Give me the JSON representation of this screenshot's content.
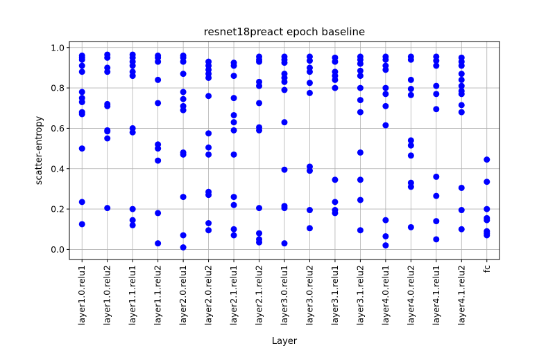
{
  "chart_data": {
    "type": "scatter",
    "title": "resnet18preact epoch baseline",
    "xlabel": "Layer",
    "ylabel": "scatter-entropy",
    "categories": [
      "layer1.0.relu1",
      "layer1.0.relu2",
      "layer1.1.relu1",
      "layer1.1.relu2",
      "layer2.0.relu1",
      "layer2.0.relu2",
      "layer2.1.relu1",
      "layer2.1.relu2",
      "layer3.0.relu1",
      "layer3.0.relu2",
      "layer3.1.relu1",
      "layer3.1.relu2",
      "layer4.0.relu1",
      "layer4.0.relu2",
      "layer4.1.relu1",
      "layer4.1.relu2",
      "fc"
    ],
    "yticks": [
      "0.0",
      "0.2",
      "0.4",
      "0.6",
      "0.8",
      "1.0"
    ],
    "ylim": [
      -0.05,
      1.03
    ],
    "grid": true,
    "marker_color": "#0000ff",
    "series": [
      {
        "category": "layer1.0.relu1",
        "y": [
          0.96,
          0.95,
          0.94,
          0.91,
          0.88,
          0.78,
          0.75,
          0.73,
          0.68,
          0.67,
          0.5,
          0.235,
          0.125
        ]
      },
      {
        "category": "layer1.0.relu2",
        "y": [
          0.965,
          0.95,
          0.9,
          0.88,
          0.72,
          0.71,
          0.59,
          0.585,
          0.55,
          0.205
        ]
      },
      {
        "category": "layer1.1.relu1",
        "y": [
          0.965,
          0.95,
          0.93,
          0.91,
          0.88,
          0.86,
          0.6,
          0.58,
          0.2,
          0.145,
          0.12
        ]
      },
      {
        "category": "layer1.1.relu2",
        "y": [
          0.96,
          0.95,
          0.93,
          0.84,
          0.725,
          0.52,
          0.5,
          0.44,
          0.18,
          0.03
        ]
      },
      {
        "category": "layer2.0.relu1",
        "y": [
          0.96,
          0.95,
          0.93,
          0.87,
          0.78,
          0.745,
          0.71,
          0.69,
          0.48,
          0.47,
          0.26,
          0.07,
          0.01
        ]
      },
      {
        "category": "layer2.0.relu2",
        "y": [
          0.93,
          0.91,
          0.89,
          0.87,
          0.85,
          0.76,
          0.575,
          0.505,
          0.47,
          0.285,
          0.27,
          0.13,
          0.095
        ]
      },
      {
        "category": "layer2.1.relu1",
        "y": [
          0.925,
          0.91,
          0.86,
          0.75,
          0.665,
          0.63,
          0.59,
          0.47,
          0.26,
          0.22,
          0.1,
          0.07
        ]
      },
      {
        "category": "layer2.1.relu2",
        "y": [
          0.955,
          0.94,
          0.93,
          0.83,
          0.81,
          0.725,
          0.605,
          0.59,
          0.205,
          0.08,
          0.05,
          0.035
        ]
      },
      {
        "category": "layer3.0.relu1",
        "y": [
          0.955,
          0.94,
          0.925,
          0.87,
          0.85,
          0.83,
          0.79,
          0.63,
          0.395,
          0.215,
          0.205,
          0.03
        ]
      },
      {
        "category": "layer3.0.relu2",
        "y": [
          0.955,
          0.935,
          0.9,
          0.88,
          0.825,
          0.775,
          0.41,
          0.39,
          0.195,
          0.105
        ]
      },
      {
        "category": "layer3.1.relu1",
        "y": [
          0.95,
          0.93,
          0.88,
          0.86,
          0.84,
          0.8,
          0.345,
          0.235,
          0.195,
          0.18
        ]
      },
      {
        "category": "layer3.1.relu2",
        "y": [
          0.955,
          0.94,
          0.92,
          0.885,
          0.86,
          0.8,
          0.74,
          0.68,
          0.48,
          0.345,
          0.245,
          0.095
        ]
      },
      {
        "category": "layer4.0.relu1",
        "y": [
          0.955,
          0.94,
          0.91,
          0.89,
          0.8,
          0.77,
          0.71,
          0.615,
          0.145,
          0.065,
          0.02
        ]
      },
      {
        "category": "layer4.0.relu2",
        "y": [
          0.955,
          0.94,
          0.84,
          0.795,
          0.765,
          0.54,
          0.515,
          0.465,
          0.33,
          0.31,
          0.11
        ]
      },
      {
        "category": "layer4.1.relu1",
        "y": [
          0.955,
          0.935,
          0.91,
          0.81,
          0.77,
          0.695,
          0.36,
          0.265,
          0.14,
          0.05
        ]
      },
      {
        "category": "layer4.1.relu2",
        "y": [
          0.95,
          0.93,
          0.91,
          0.87,
          0.84,
          0.81,
          0.785,
          0.77,
          0.715,
          0.68,
          0.305,
          0.195,
          0.1
        ]
      },
      {
        "category": "fc",
        "y": [
          0.445,
          0.335,
          0.2,
          0.155,
          0.145,
          0.09,
          0.08,
          0.07
        ]
      }
    ]
  }
}
